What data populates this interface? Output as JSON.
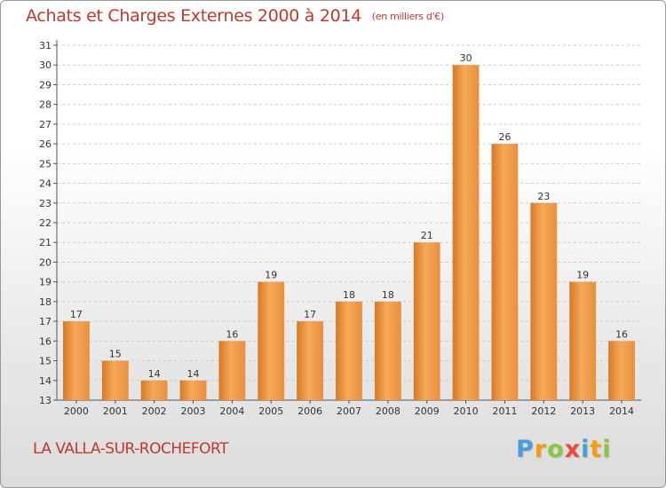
{
  "title": "Achats et Charges Externes 2000 à 2014",
  "subtitle": "(en milliers d'€)",
  "location": "LA VALLA-SUR-ROCHEFORT",
  "logo": {
    "letters": [
      "P",
      "r",
      "o",
      "x",
      "i",
      "t",
      "i"
    ],
    "colors": [
      "#4a9fd8",
      "#f39c12",
      "#8cc63f",
      "#e74c3c",
      "#4a9fd8",
      "#f39c12",
      "#8cc63f"
    ]
  },
  "colors": {
    "bar_light": "#f7a85a",
    "bar_dark": "#d67a26",
    "title": "#c0392b",
    "grid": "#cccccc"
  },
  "chart_data": {
    "type": "bar",
    "title": "Achats et Charges Externes 2000 à 2014",
    "subtitle": "(en milliers d'€)",
    "categories": [
      "2000",
      "2001",
      "2002",
      "2003",
      "2004",
      "2005",
      "2006",
      "2007",
      "2008",
      "2009",
      "2010",
      "2011",
      "2012",
      "2013",
      "2014"
    ],
    "values": [
      17,
      15,
      14,
      14,
      16,
      19,
      17,
      18,
      18,
      21,
      30,
      26,
      23,
      19,
      16
    ],
    "ylim": [
      13,
      31
    ],
    "yticks": [
      13,
      14,
      15,
      16,
      17,
      18,
      19,
      20,
      21,
      22,
      23,
      24,
      25,
      26,
      27,
      28,
      29,
      30,
      31
    ],
    "grid": true,
    "xlabel": "",
    "ylabel": ""
  }
}
